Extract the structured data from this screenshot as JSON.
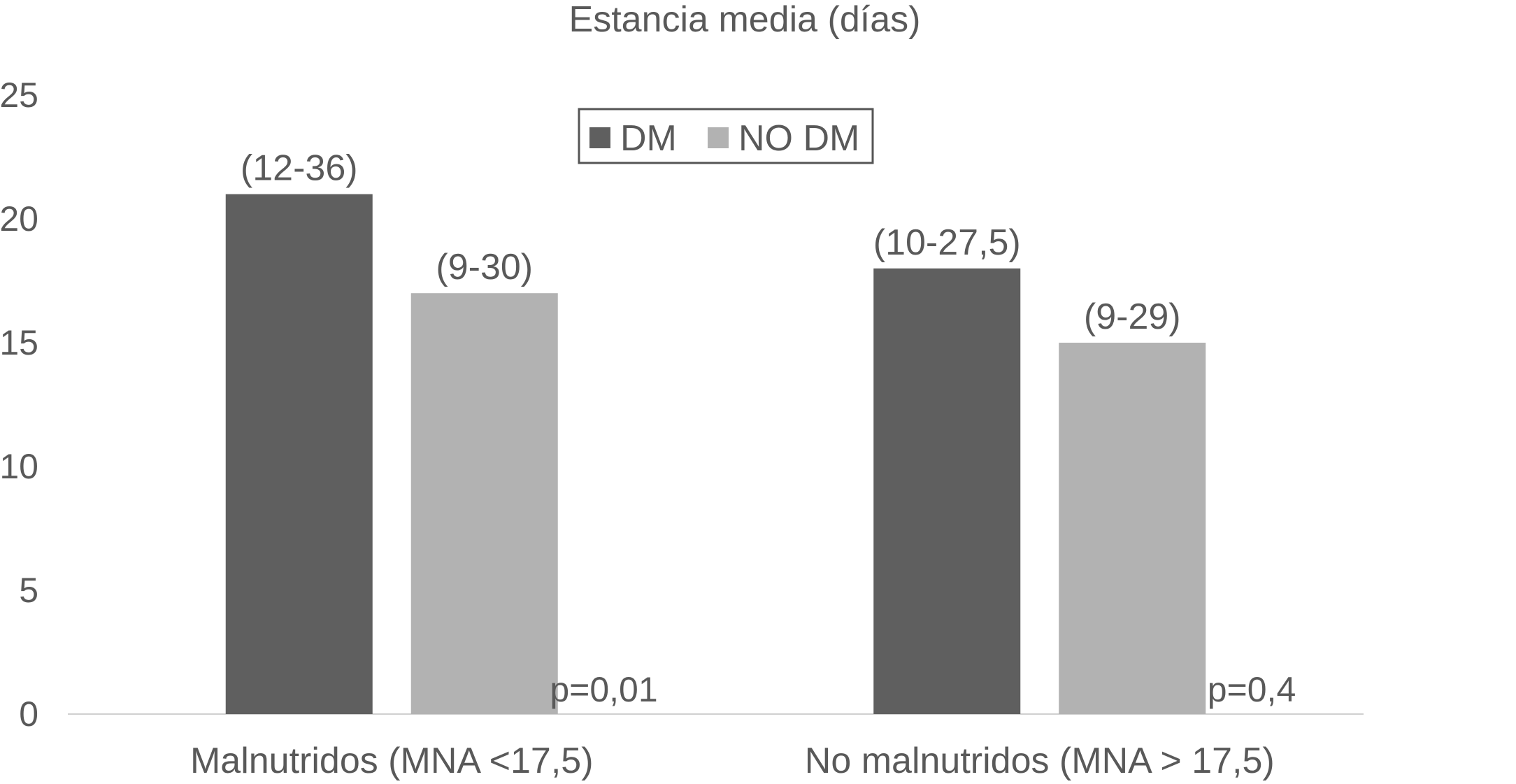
{
  "chart_data": {
    "type": "bar",
    "title": "Estancia media (días)",
    "categories": [
      "Malnutridos (MNA <17,5)",
      "No malnutridos (MNA > 17,5)"
    ],
    "series": [
      {
        "name": "DM",
        "color": "#5f5f5f",
        "values": [
          21,
          18
        ],
        "labels": [
          "(12-36)",
          "(10-27,5)"
        ]
      },
      {
        "name": "NO DM",
        "color": "#b2b2b2",
        "values": [
          17,
          15
        ],
        "labels": [
          "(9-30)",
          "(9-29)"
        ]
      }
    ],
    "annotations": [
      "p=0,01",
      "p=0,4"
    ],
    "ylim": [
      0,
      25
    ],
    "yticks": [
      0,
      5,
      10,
      15,
      20,
      25
    ],
    "grid": false,
    "legend": "top-center"
  }
}
